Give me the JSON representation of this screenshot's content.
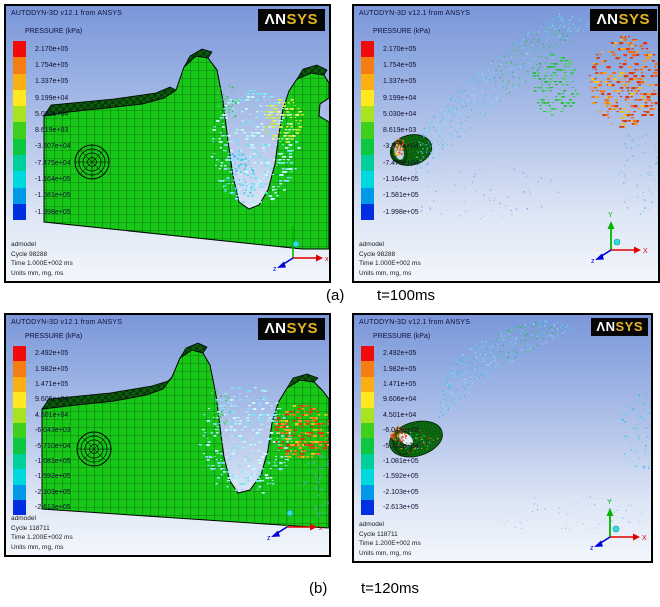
{
  "figure": {
    "captions": {
      "a": {
        "index": "(a)",
        "time": "t=100ms"
      },
      "b": {
        "index": "(b)",
        "time": "t=120ms"
      }
    }
  },
  "legend_colors": [
    "#f10a0a",
    "#f57e14",
    "#fcaf12",
    "#ffe81e",
    "#a8e321",
    "#3ed01c",
    "#0cc73f",
    "#00cf9b",
    "#00d8e0",
    "#0099e8",
    "#002ee0"
  ],
  "panels": {
    "a_left": {
      "title": "AUTODYN-3D v12.1 from ANSYS",
      "logo": {
        "an": "ΛN",
        "sys": "SYS"
      },
      "legend": {
        "title": "PRESSURE (kPa)",
        "values": [
          "2.170e+05",
          "1.754e+05",
          "1.337e+05",
          "9.199e+04",
          "5.030e+04",
          "8.619e+03",
          "-3.307e+04",
          "-7.475e+04",
          "-1.164e+05",
          "-1.581e+05",
          "-1.998e+05"
        ]
      },
      "footer": [
        "admodel",
        "Cycle 98288",
        "Time 1.000E+002 ms",
        "Units mm, mg, ms"
      ],
      "axes": {
        "x": "x",
        "z": "z"
      }
    },
    "a_right": {
      "title": "AUTODYN-3D v12.1 from ANSYS",
      "logo": {
        "an": "ΛN",
        "sys": "SYS"
      },
      "legend": {
        "title": "PRESSURE (kPa)",
        "values": [
          "2.170e+05",
          "1.754e+05",
          "1.337e+05",
          "9.199e+04",
          "5.030e+04",
          "8.619e+03",
          "-3.307e+04",
          "-7.475e+04",
          "-1.164e+05",
          "-1.581e+05",
          "-1.998e+05"
        ]
      },
      "footer": [
        "admodel",
        "Cycle 98288",
        "Time 1.000E+002 ms",
        "Units mm, mg, ms"
      ],
      "axes": {
        "x": "X",
        "y": "Y",
        "z": "z"
      }
    },
    "b_left": {
      "title": "AUTODYN-3D v12.1 from ANSYS",
      "logo": {
        "an": "ΛN",
        "sys": "SYS"
      },
      "legend": {
        "title": "PRESSURE (kPa)",
        "values": [
          "2.492e+05",
          "1.982e+05",
          "1.471e+05",
          "9.606e+04",
          "4.501e+04",
          "-6.043e+03",
          "-5.710e+04",
          "-1.081e+05",
          "-1.592e+05",
          "-2.103e+05",
          "-2.613e+05"
        ]
      },
      "footer": [
        "admodel",
        "Cycle 118711",
        "Time 1.200E+002 ms",
        "Units mm, mg, ms"
      ],
      "axes": {
        "x": "x",
        "z": "z"
      }
    },
    "b_right": {
      "title": "AUTODYN-3D v12.1 from ANSYS",
      "logo": {
        "an": "ΛN",
        "sys": "SYS"
      },
      "legend": {
        "title": "PRESSURE (kPa)",
        "values": [
          "2.492e+05",
          "1.982e+05",
          "1.471e+05",
          "9.606e+04",
          "4.501e+04",
          "-6.043e+03",
          "-5.710e+04",
          "-1.081e+05",
          "-1.592e+05",
          "-2.103e+05",
          "-2.613e+05"
        ]
      },
      "footer": [
        "admodel",
        "Cycle 118711",
        "Time 1.200E+002 ms",
        "Units mm, mg, ms"
      ],
      "axes": {
        "x": "X",
        "y": "Y",
        "z": "z"
      }
    }
  }
}
